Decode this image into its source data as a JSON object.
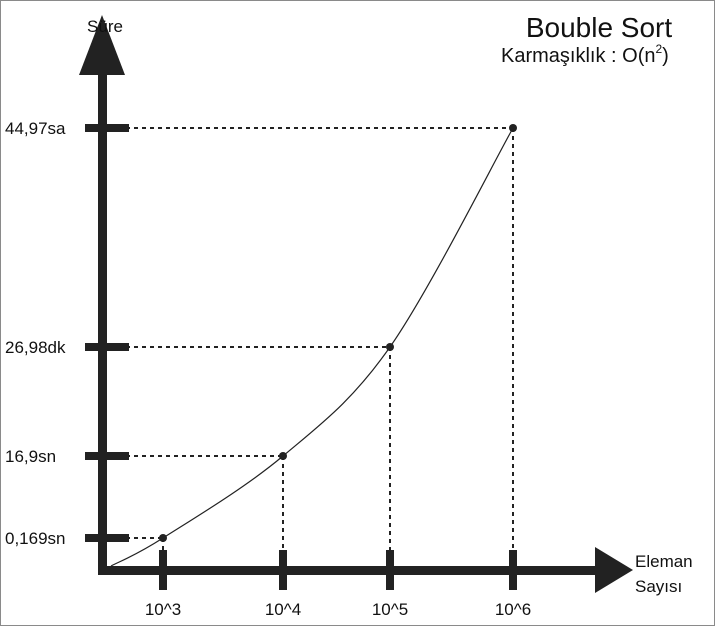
{
  "chart_data": {
    "type": "line",
    "title": "Bouble Sort",
    "subtitle_prefix": "Karmaşıklık : O(n",
    "subtitle_exp": "2",
    "subtitle_suffix": ")",
    "ylabel": "Süre",
    "xlabel_line1": "Eleman",
    "xlabel_line2": "Sayısı",
    "x_ticks": [
      "10^3",
      "10^4",
      "10^5",
      "10^6"
    ],
    "y_ticks": [
      "0,169sn",
      "16,9sn",
      "26,98dk",
      "44,97sa"
    ],
    "points": [
      {
        "x": "10^3",
        "y": "0,169sn"
      },
      {
        "x": "10^4",
        "y": "16,9sn"
      },
      {
        "x": "10^5",
        "y": "26,98dk"
      },
      {
        "x": "10^6",
        "y": "44,97sa"
      }
    ],
    "guide_lines": "dashed",
    "grid": false,
    "legend": false,
    "colors": {
      "axis": "#222222",
      "curve": "#222222",
      "text": "#111111"
    }
  }
}
